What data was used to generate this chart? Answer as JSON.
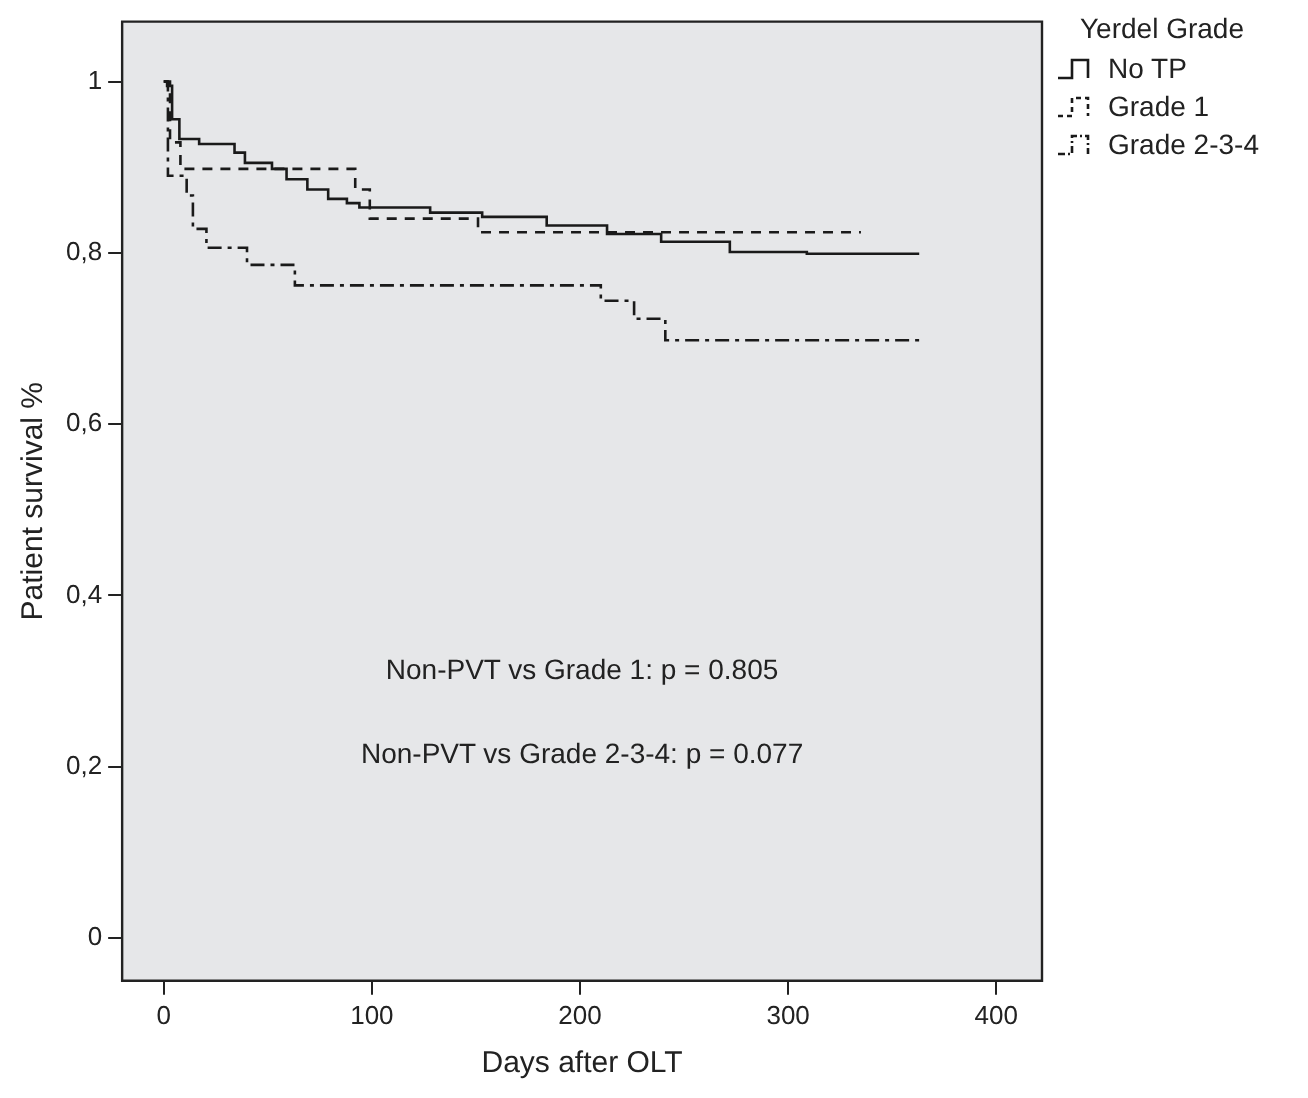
{
  "chart_data": {
    "type": "step",
    "xlabel": "Days after OLT",
    "ylabel": "Patient survival %",
    "legend_title": "Yerdel Grade",
    "legend": "top right",
    "xlim": [
      -20,
      422
    ],
    "xticks": [
      0,
      100,
      200,
      300,
      400
    ],
    "ylim": [
      -0.05,
      1.07
    ],
    "yticks": [
      {
        "value": 0,
        "label": "0"
      },
      {
        "value": 0.2,
        "label": "0,2"
      },
      {
        "value": 0.4,
        "label": "0,4"
      },
      {
        "value": 0.6,
        "label": "0,6"
      },
      {
        "value": 0.8,
        "label": "0,8"
      },
      {
        "value": 1,
        "label": "1"
      }
    ],
    "series": [
      {
        "name": "No TP",
        "color": "#1a1a1a",
        "line_style": "solid",
        "x": [
          0,
          1.6,
          4,
          7.5,
          17,
          34,
          39,
          52,
          59,
          69,
          79,
          88,
          94,
          128,
          153,
          184,
          213,
          239,
          272,
          309,
          363
        ],
        "values": [
          1,
          0.995,
          0.956,
          0.933,
          0.927,
          0.917,
          0.905,
          0.898,
          0.886,
          0.874,
          0.863,
          0.858,
          0.853,
          0.847,
          0.842,
          0.832,
          0.822,
          0.813,
          0.801,
          0.799,
          0.799
        ]
      },
      {
        "name": "Grade 1",
        "color": "#1a1a1a",
        "line_style": "dashed",
        "x": [
          0,
          3,
          8,
          92,
          99,
          151,
          335
        ],
        "values": [
          1,
          0.929,
          0.898,
          0.874,
          0.84,
          0.824,
          0.824
        ]
      },
      {
        "name": "Grade 2-3-4",
        "color": "#1a1a1a",
        "line_style": "dashdot",
        "x": [
          0,
          2,
          11,
          14,
          20.5,
          40,
          63,
          210,
          226,
          241,
          363
        ],
        "values": [
          1,
          0.89,
          0.867,
          0.828,
          0.806,
          0.786,
          0.762,
          0.744,
          0.723,
          0.698,
          0.698
        ]
      }
    ],
    "annotations": [
      "Non-PVT vs Grade 1: p = 0.805",
      "Non-PVT vs Grade 2-3-4: p = 0.077"
    ]
  }
}
